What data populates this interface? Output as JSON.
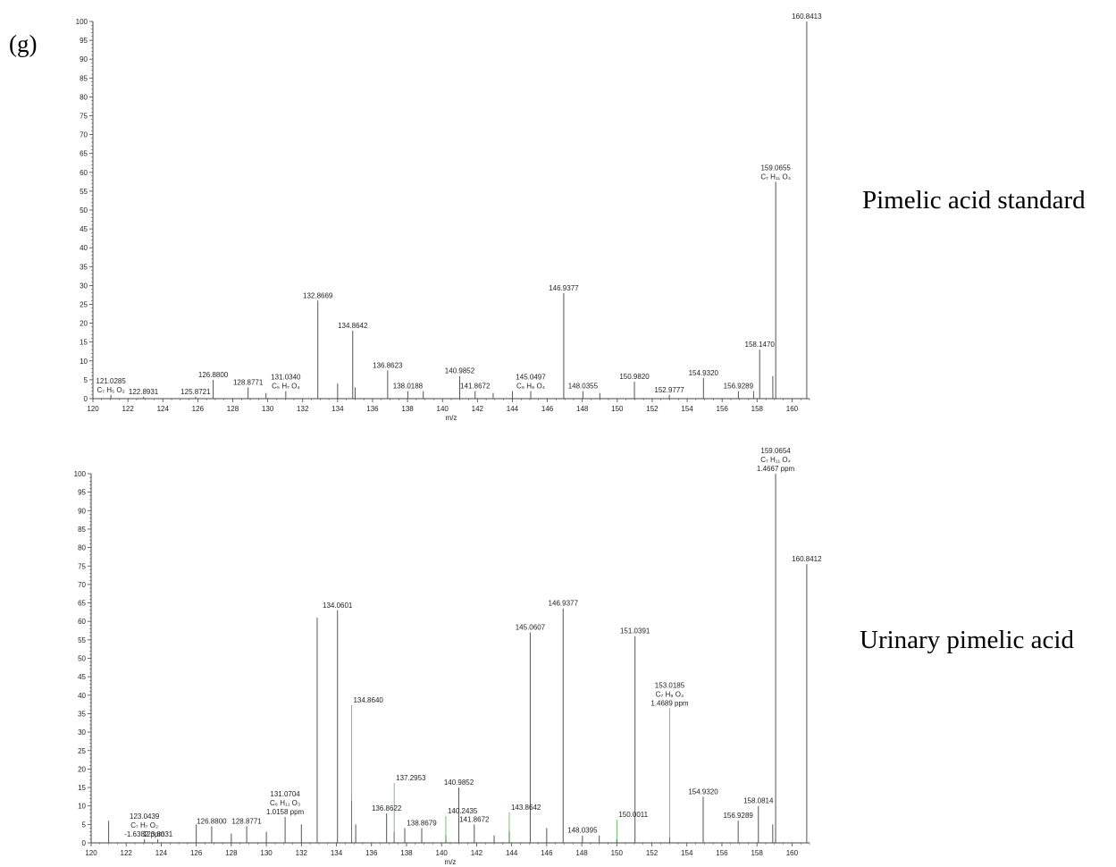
{
  "panel_label": "(g)",
  "chart_data": [
    {
      "type": "bar",
      "name": "Pimelic acid standard",
      "xlabel": "m/z",
      "xlim": [
        120,
        161
      ],
      "ylim": [
        0,
        100
      ],
      "xticks": [
        120,
        122,
        124,
        126,
        128,
        130,
        132,
        134,
        136,
        138,
        140,
        142,
        144,
        146,
        148,
        150,
        152,
        154,
        156,
        158,
        160
      ],
      "yticks": [
        0,
        5,
        10,
        15,
        20,
        25,
        30,
        35,
        40,
        45,
        50,
        55,
        60,
        65,
        70,
        75,
        80,
        85,
        90,
        95,
        100
      ],
      "peaks": [
        {
          "x": 121.0285,
          "y": 1,
          "label": [
            "121.0285",
            "C₇ H₅ O₂"
          ]
        },
        {
          "x": 122.8931,
          "y": 0.5,
          "label": [
            "122.8931"
          ]
        },
        {
          "x": 125.8721,
          "y": 0.5,
          "label": [
            "125.8721"
          ]
        },
        {
          "x": 126.88,
          "y": 5,
          "label": [
            "126.8800"
          ]
        },
        {
          "x": 128.8771,
          "y": 3,
          "label": [
            "128.8771"
          ]
        },
        {
          "x": 129.9,
          "y": 1.5
        },
        {
          "x": 131.034,
          "y": 2,
          "label": [
            "131.0340",
            "C₅ H₇ O₄"
          ]
        },
        {
          "x": 132.8669,
          "y": 26,
          "label": [
            "132.8669"
          ]
        },
        {
          "x": 134.0,
          "y": 4
        },
        {
          "x": 134.8642,
          "y": 18,
          "label": [
            "134.8642"
          ]
        },
        {
          "x": 135.0,
          "y": 3
        },
        {
          "x": 136.8623,
          "y": 7.5,
          "label": [
            "136.8623"
          ]
        },
        {
          "x": 138.0188,
          "y": 2,
          "label": [
            "138.0188"
          ]
        },
        {
          "x": 138.9,
          "y": 2
        },
        {
          "x": 140.9852,
          "y": 6,
          "label": [
            "140.9852"
          ]
        },
        {
          "x": 141.8672,
          "y": 2,
          "label": [
            "141.8672"
          ]
        },
        {
          "x": 142.9,
          "y": 1.5
        },
        {
          "x": 144.0,
          "y": 2
        },
        {
          "x": 145.0497,
          "y": 2,
          "label": [
            "145.0497",
            "C₆ H₉ O₄"
          ]
        },
        {
          "x": 146.9377,
          "y": 28,
          "label": [
            "146.9377"
          ]
        },
        {
          "x": 148.0355,
          "y": 2,
          "label": [
            "148.0355"
          ]
        },
        {
          "x": 149.0,
          "y": 1.5
        },
        {
          "x": 150.982,
          "y": 4.5,
          "label": [
            "150.9820"
          ]
        },
        {
          "x": 152.9777,
          "y": 1,
          "label": [
            "152.9777"
          ]
        },
        {
          "x": 154.932,
          "y": 5.5,
          "label": [
            "154.9320"
          ]
        },
        {
          "x": 156.9289,
          "y": 2,
          "label": [
            "156.9289"
          ]
        },
        {
          "x": 157.8,
          "y": 2
        },
        {
          "x": 158.147,
          "y": 13,
          "label": [
            "158.1470"
          ]
        },
        {
          "x": 158.9,
          "y": 6
        },
        {
          "x": 159.0655,
          "y": 57.5,
          "label": [
            "159.0655",
            "C₇ H₁₁ O₄"
          ]
        },
        {
          "x": 160.8413,
          "y": 100,
          "label": [
            "160.8413"
          ]
        }
      ]
    },
    {
      "type": "bar",
      "name": "Urinary pimelic acid",
      "xlabel": "m/z",
      "xlim": [
        120,
        161
      ],
      "ylim": [
        0,
        100
      ],
      "xticks": [
        120,
        122,
        124,
        126,
        128,
        130,
        132,
        134,
        136,
        138,
        140,
        142,
        144,
        146,
        148,
        150,
        152,
        154,
        156,
        158,
        160
      ],
      "yticks": [
        0,
        5,
        10,
        15,
        20,
        25,
        30,
        35,
        40,
        45,
        50,
        55,
        60,
        65,
        70,
        75,
        80,
        85,
        90,
        95,
        100
      ],
      "peaks": [
        {
          "x": 121.0,
          "y": 6
        },
        {
          "x": 123.0439,
          "y": 1,
          "label": [
            "123.0439",
            "C₇ H₇ O₂",
            "-1.6382 ppm"
          ]
        },
        {
          "x": 123.8031,
          "y": 1,
          "label": [
            "123.8031"
          ]
        },
        {
          "x": 126.0,
          "y": 5
        },
        {
          "x": 126.88,
          "y": 4.5,
          "label": [
            "126.8800"
          ]
        },
        {
          "x": 128.0,
          "y": 2.5
        },
        {
          "x": 128.8771,
          "y": 4.5,
          "label": [
            "128.8771"
          ]
        },
        {
          "x": 130.0,
          "y": 3
        },
        {
          "x": 131.0704,
          "y": 7,
          "label": [
            "131.0704",
            "C₆ H₁₁ O₃",
            "1.0158 ppm"
          ]
        },
        {
          "x": 132.0,
          "y": 5
        },
        {
          "x": 132.9,
          "y": 61
        },
        {
          "x": 134.0601,
          "y": 63,
          "label": [
            "134.0601"
          ]
        },
        {
          "x": 134.864,
          "y": 11.5
        },
        {
          "x": 135.1,
          "y": 5
        },
        {
          "x": 136.8622,
          "y": 8,
          "label": [
            "136.8622"
          ]
        },
        {
          "x": 137.2953,
          "y": 3,
          "label": [
            "137.2953"
          ]
        },
        {
          "x": 137.9,
          "y": 4
        },
        {
          "x": 138.8679,
          "y": 4,
          "label": [
            "138.8679"
          ]
        },
        {
          "x": 140.2435,
          "y": 2,
          "label": [
            "140.2435"
          ]
        },
        {
          "x": 140.9852,
          "y": 15,
          "label": [
            "140.9852"
          ]
        },
        {
          "x": 141.8672,
          "y": 5,
          "label": [
            "141.8672"
          ]
        },
        {
          "x": 143.0,
          "y": 2
        },
        {
          "x": 143.8642,
          "y": 3,
          "label": [
            "143.8642"
          ]
        },
        {
          "x": 145.0607,
          "y": 57,
          "label": [
            "145.0607"
          ]
        },
        {
          "x": 146.0,
          "y": 4
        },
        {
          "x": 146.9377,
          "y": 63.5,
          "label": [
            "146.9377"
          ]
        },
        {
          "x": 148.0395,
          "y": 2,
          "label": [
            "148.0395"
          ]
        },
        {
          "x": 149.0,
          "y": 2
        },
        {
          "x": 150.0011,
          "y": 1,
          "label": [
            "150.0011"
          ]
        },
        {
          "x": 151.0391,
          "y": 56,
          "label": [
            "151.0391"
          ]
        },
        {
          "x": 153.0185,
          "y": 1.5,
          "label": [
            "153.0185",
            "C₇ H₉ O₄",
            "1.4689 ppm"
          ]
        },
        {
          "x": 154.932,
          "y": 12.5,
          "label": [
            "154.9320"
          ]
        },
        {
          "x": 156.9289,
          "y": 6,
          "label": [
            "156.9289"
          ]
        },
        {
          "x": 158.0814,
          "y": 10,
          "label": [
            "158.0814"
          ]
        },
        {
          "x": 158.9,
          "y": 5
        },
        {
          "x": 159.0654,
          "y": 100,
          "label": [
            "159.0654",
            "C₇ H₁₁ O₄",
            "1.4667 ppm"
          ]
        },
        {
          "x": 160.8412,
          "y": 75.5,
          "label": [
            "160.8412"
          ]
        }
      ],
      "floating_labels": [
        {
          "x": 134.864,
          "y": 38,
          "label": [
            "134.8640"
          ],
          "line_to": 134.864,
          "line_color": "#33aa33"
        },
        {
          "x": 137.2953,
          "y": 17,
          "label": [
            "137.2953"
          ],
          "line_to": 137.2953,
          "line_color": "#33aa33"
        },
        {
          "x": 140.2435,
          "y": 8,
          "label": [
            "140.2435"
          ],
          "line_to": 140.2435,
          "line_color": "#33aa33"
        },
        {
          "x": 143.8642,
          "y": 9,
          "label": [
            "143.8642"
          ],
          "line_to": 143.8642,
          "line_color": "#33aa33"
        },
        {
          "x": 150.0011,
          "y": 7,
          "label": [
            "150.0011"
          ],
          "line_to": 150.0011,
          "line_color": "#33aa33"
        },
        {
          "x": 153.0185,
          "y": 42,
          "label": [
            "153.0185",
            "C₇ H₉ O₄",
            "1.4689 ppm"
          ],
          "line_to": 153.0185,
          "line_color": "#33aa33"
        }
      ]
    }
  ],
  "side_labels": [
    "Pimelic acid standard",
    "Urinary pimelic acid"
  ],
  "colors": {
    "axis": "#444444",
    "peak": "#555555",
    "leader": "#33aa33"
  }
}
